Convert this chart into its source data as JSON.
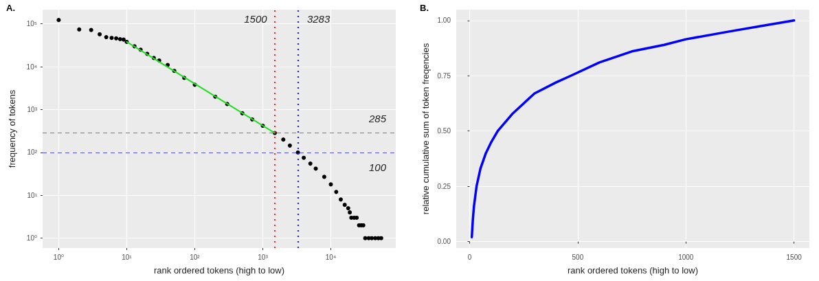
{
  "chart_data": [
    {
      "type": "scatter",
      "title": "A.",
      "xlabel": "rank ordered tokens (high to low)",
      "ylabel": "frequency of tokens",
      "log": "xy",
      "xlim": [
        0.58,
        90000
      ],
      "ylim": [
        0.59,
        215000
      ],
      "xticks": [
        {
          "value": 1,
          "label": "10⁰"
        },
        {
          "value": 10,
          "label": "10¹"
        },
        {
          "value": 100,
          "label": "10²"
        },
        {
          "value": 1000,
          "label": "10³"
        },
        {
          "value": 10000,
          "label": "10⁴"
        }
      ],
      "yticks": [
        {
          "value": 1,
          "label": "10⁰"
        },
        {
          "value": 10,
          "label": "10¹"
        },
        {
          "value": 100,
          "label": "10²"
        },
        {
          "value": 1000,
          "label": "10³"
        },
        {
          "value": 10000,
          "label": "10⁴"
        },
        {
          "value": 100000,
          "label": "10⁵"
        }
      ],
      "grid": true,
      "series": [
        {
          "type": "scatter",
          "color": "#000000",
          "x": [
            1,
            2,
            3,
            4,
            5,
            6,
            7,
            8,
            9,
            10,
            13,
            16,
            20,
            25,
            30,
            40,
            50,
            70,
            100,
            200,
            300,
            500,
            700,
            1000,
            1500,
            2000,
            2500,
            3283,
            4000,
            5000,
            6000,
            8000,
            10000,
            12000,
            14000,
            16000,
            18000,
            19000,
            20000,
            22000,
            24000,
            26000,
            28000,
            30000,
            32000,
            36000,
            40000,
            45000,
            50000,
            55000
          ],
          "values": [
            123000,
            74000,
            72000,
            57000,
            49000,
            47000,
            46000,
            44000,
            43000,
            38000,
            30000,
            25000,
            20000,
            16000,
            14000,
            11000,
            8000,
            5500,
            3800,
            2000,
            1350,
            820,
            590,
            420,
            285,
            200,
            145,
            100,
            75,
            55,
            42,
            27,
            18,
            12,
            8,
            6,
            5,
            4,
            3,
            3,
            3,
            2,
            2,
            2,
            1,
            1,
            1,
            1,
            1,
            1
          ]
        },
        {
          "type": "line",
          "color": "#22dd22",
          "x": [
            10,
            1500
          ],
          "values": [
            38000,
            285
          ]
        }
      ],
      "ref_lines": [
        {
          "axis": "x",
          "value": 1500,
          "label": "1500",
          "color": "#ff2020",
          "line_style": "dotted"
        },
        {
          "axis": "x",
          "value": 3283,
          "label": "3283",
          "color": "#2020ff",
          "line_style": "dotted"
        },
        {
          "axis": "y",
          "value": 285,
          "label": "285",
          "color": "#ff4040",
          "line_style": "dashed"
        },
        {
          "axis": "y",
          "value": 100,
          "label": "100",
          "color": "#5050ff",
          "line_style": "dashed"
        }
      ]
    },
    {
      "type": "line",
      "title": "B.",
      "xlabel": "rank ordered tokens (high to low)",
      "ylabel": "relative cumulative sum of token freqencies",
      "xlim": [
        -62,
        1571
      ],
      "ylim": [
        -0.029,
        1.049
      ],
      "xticks": [
        0,
        500,
        1000,
        1500
      ],
      "yticks": [
        {
          "value": 0,
          "label": "0.00"
        },
        {
          "value": 0.25,
          "label": "0.25"
        },
        {
          "value": 0.5,
          "label": "0.50"
        },
        {
          "value": 0.75,
          "label": "0.75"
        },
        {
          "value": 1,
          "label": "1.00"
        }
      ],
      "grid": true,
      "series": [
        {
          "color": "#0000ff",
          "x": [
            10,
            15,
            20,
            32,
            50,
            75,
            100,
            130,
            200,
            300,
            400,
            468,
            600,
            750,
            900,
            1000,
            1200,
            1350,
            1500
          ],
          "values": [
            0.02,
            0.1,
            0.16,
            0.25,
            0.33,
            0.4,
            0.45,
            0.5,
            0.58,
            0.67,
            0.72,
            0.75,
            0.81,
            0.86,
            0.89,
            0.915,
            0.95,
            0.975,
            1.0
          ]
        }
      ]
    }
  ]
}
